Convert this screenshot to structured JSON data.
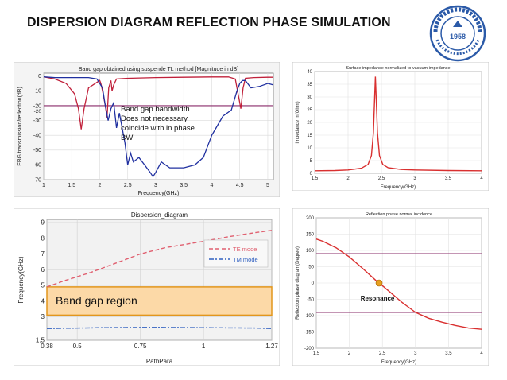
{
  "slide": {
    "title": "DISPERSION DIAGRAM REFLECTION PHASE SIMULATION",
    "logo": {
      "center_text": "1958",
      "name": "university-seal-logo",
      "color": "#2b5aa8"
    }
  },
  "chart_data": [
    {
      "type": "line",
      "title": "Band gap obtained using suspende TL method [Magnitude in dB]",
      "xlabel": "Frequency(GHz)",
      "ylabel": "EBG transmission/reflection(dB)",
      "xlim": [
        1,
        5.1
      ],
      "ylim": [
        -70,
        2
      ],
      "xticks": [
        "1",
        "1.5",
        "2",
        "2.5",
        "3",
        "3.5",
        "4",
        "4.5",
        "5"
      ],
      "xtick_values": [
        1,
        1.5,
        2,
        2.5,
        3,
        3.5,
        4,
        4.5,
        5
      ],
      "yticks": [
        "0",
        "-10",
        "-20",
        "-30",
        "-40",
        "-50",
        "-60",
        "-70"
      ],
      "ytick_values": [
        0,
        -10,
        -20,
        -30,
        -40,
        -50,
        -60,
        -70
      ],
      "extra_ytick": "-20",
      "annotation": [
        "Band gap bandwidth",
        "Does not necessary",
        "coincide with in phase",
        "BW"
      ],
      "hline_y": -20,
      "hline_color": "#8a2b6a",
      "series": [
        {
          "color": "#c0203a",
          "x": [
            1.0,
            1.2,
            1.4,
            1.55,
            1.62,
            1.67,
            1.72,
            1.8,
            2.0,
            2.02,
            2.05,
            2.1,
            2.13,
            2.16,
            2.2,
            2.22,
            2.25,
            2.3,
            2.5,
            3.0,
            3.5,
            4.0,
            4.3,
            4.42,
            4.48,
            4.52,
            4.56,
            4.6,
            4.75,
            5.0,
            5.1
          ],
          "y": [
            -0.5,
            -2,
            -5,
            -12,
            -22,
            -36,
            -22,
            -8,
            -3,
            -5,
            -10,
            -20,
            -28,
            -8,
            -3,
            -10,
            -6,
            -2,
            -1.5,
            -1,
            -0.8,
            -0.6,
            -0.6,
            -2,
            -14,
            -22,
            -8,
            -1.5,
            -1,
            -0.8,
            -0.8
          ]
        },
        {
          "color": "#2030a0",
          "x": [
            1.0,
            1.2,
            1.5,
            1.8,
            1.95,
            2.05,
            2.1,
            2.15,
            2.2,
            2.25,
            2.3,
            2.35,
            2.45,
            2.5,
            2.55,
            2.6,
            2.7,
            2.8,
            2.9,
            2.95,
            3.0,
            3.1,
            3.25,
            3.5,
            3.7,
            3.85,
            4.0,
            4.2,
            4.35,
            4.45,
            4.5,
            4.55,
            4.6,
            4.7,
            4.85,
            5.0,
            5.1
          ],
          "y": [
            -0.5,
            -1,
            -1,
            -1,
            -2,
            -8,
            -20,
            -30,
            -22,
            -18,
            -35,
            -25,
            -45,
            -60,
            -52,
            -58,
            -55,
            -60,
            -65,
            -68,
            -65,
            -58,
            -62,
            -62,
            -60,
            -55,
            -40,
            -27,
            -23,
            -10,
            -5,
            -3,
            -3,
            -8,
            -7,
            -5,
            -6
          ]
        }
      ]
    },
    {
      "type": "line",
      "title": "Surface impedance normalized to vacuum impedance",
      "xlabel": "Frequency(GHz)",
      "ylabel": "Impedance m(Ohm)",
      "xlim": [
        1.5,
        4
      ],
      "ylim": [
        0,
        40
      ],
      "xticks": [
        "1.5",
        "2",
        "2.5",
        "3",
        "3.5",
        "4"
      ],
      "xtick_values": [
        1.5,
        2,
        2.5,
        3,
        3.5,
        4
      ],
      "yticks": [
        "0",
        "5",
        "10",
        "15",
        "20",
        "25",
        "30",
        "35",
        "40"
      ],
      "ytick_values": [
        0,
        5,
        10,
        15,
        20,
        25,
        30,
        35,
        40
      ],
      "series": [
        {
          "color": "#d93030",
          "x": [
            1.5,
            1.8,
            2.0,
            2.2,
            2.3,
            2.35,
            2.38,
            2.41,
            2.44,
            2.47,
            2.52,
            2.6,
            2.8,
            3.0,
            3.5,
            4.0
          ],
          "y": [
            1.0,
            1.1,
            1.3,
            2.0,
            3.5,
            7,
            16,
            38,
            16,
            7,
            3.5,
            2.2,
            1.5,
            1.3,
            1.1,
            1.0
          ]
        }
      ]
    },
    {
      "type": "line",
      "title": "Dispersion_diagram",
      "xlabel": "PathPara",
      "ylabel": "Frequency(GHz)",
      "xlim": [
        0.38,
        1.27
      ],
      "ylim": [
        1.5,
        9.2
      ],
      "xticks": [
        "0.38",
        "0.5",
        "0.75",
        "1",
        "1.27"
      ],
      "xtick_values": [
        0.38,
        0.5,
        0.75,
        1,
        1.27
      ],
      "yticks": [
        "1.5",
        "3",
        "4",
        "5",
        "6",
        "7",
        "8",
        "9"
      ],
      "ytick_values": [
        1.5,
        3,
        4,
        5,
        6,
        7,
        8,
        9
      ],
      "band_label": "Band gap region",
      "band_range": [
        3.1,
        4.9
      ],
      "legend": [
        "TE mode",
        "TM mode"
      ],
      "series": [
        {
          "name": "TE mode",
          "color": "#e06070",
          "x": [
            0.38,
            0.45,
            0.55,
            0.65,
            0.75,
            0.85,
            1.0,
            1.1,
            1.2,
            1.27
          ],
          "y": [
            4.9,
            5.3,
            5.8,
            6.4,
            7.0,
            7.4,
            7.8,
            8.1,
            8.35,
            8.5
          ]
        },
        {
          "name": "TM mode",
          "color": "#3060c0",
          "x": [
            0.38,
            0.6,
            0.8,
            1.0,
            1.2,
            1.27
          ],
          "y": [
            2.25,
            2.3,
            2.32,
            2.3,
            2.28,
            2.25
          ]
        }
      ]
    },
    {
      "type": "line",
      "title": "Reflection phase normal incidence",
      "xlabel": "Frequency(GHz)",
      "ylabel": "Reflection phase diagram(Degree)",
      "xlim": [
        1.5,
        4
      ],
      "ylim": [
        -200,
        200
      ],
      "xticks": [
        "1.5",
        "2",
        "2.5",
        "3",
        "3.5",
        "4"
      ],
      "xtick_values": [
        1.5,
        2,
        2.5,
        3,
        3.5,
        4
      ],
      "yticks": [
        "200",
        "150",
        "100",
        "50",
        "0",
        "-50",
        "-100",
        "-150",
        "-200"
      ],
      "ytick_values": [
        200,
        150,
        100,
        50,
        0,
        -50,
        -100,
        -150,
        -200
      ],
      "hlines": [
        90,
        -90
      ],
      "hline_color": "#8a2b6a",
      "point_label": "Resonance",
      "point": [
        2.45,
        0
      ],
      "point_color": "#e8a020",
      "series": [
        {
          "color": "#d93030",
          "x": [
            1.5,
            1.6,
            1.8,
            2.0,
            2.2,
            2.4,
            2.5,
            2.6,
            2.8,
            3.0,
            3.2,
            3.4,
            3.6,
            3.8,
            4.0
          ],
          "y": [
            135,
            128,
            108,
            80,
            45,
            8,
            -8,
            -25,
            -60,
            -90,
            -108,
            -120,
            -130,
            -138,
            -142
          ]
        }
      ]
    }
  ]
}
